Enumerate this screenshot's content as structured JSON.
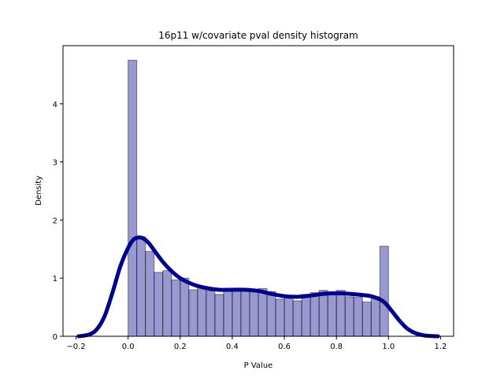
{
  "chart_data": {
    "type": "bar",
    "title": "16p11 w/covariate pval density histogram",
    "xlabel": "P Value",
    "ylabel": "Density",
    "xlim": [
      -0.25,
      1.25
    ],
    "ylim": [
      0,
      5.0
    ],
    "xticks": [
      -0.2,
      0.0,
      0.2,
      0.4,
      0.6,
      0.8,
      1.0,
      1.2
    ],
    "xtick_labels": [
      "−0.2",
      "0.0",
      "0.2",
      "0.4",
      "0.6",
      "0.8",
      "1.0",
      "1.2"
    ],
    "yticks": [
      0,
      1,
      2,
      3,
      4
    ],
    "ytick_labels": [
      "0",
      "1",
      "2",
      "3",
      "4"
    ],
    "bar_color": "#00008b",
    "bar_alpha": 0.4,
    "bar_edge_color": "#000000",
    "kde_color": "#00008b",
    "grid": false,
    "bins": {
      "left": [
        0.0,
        0.0333,
        0.0667,
        0.1,
        0.1333,
        0.1667,
        0.2,
        0.2333,
        0.2667,
        0.3,
        0.3333,
        0.3667,
        0.4,
        0.4333,
        0.4667,
        0.5,
        0.5333,
        0.5667,
        0.6,
        0.6333,
        0.6667,
        0.7,
        0.7333,
        0.7667,
        0.8,
        0.8333,
        0.8667,
        0.9,
        0.9333,
        0.9667
      ],
      "width": 0.0333,
      "density": [
        4.75,
        1.71,
        1.46,
        1.1,
        1.13,
        0.97,
        1.0,
        0.8,
        0.86,
        0.78,
        0.72,
        0.78,
        0.79,
        0.82,
        0.78,
        0.82,
        0.77,
        0.64,
        0.68,
        0.61,
        0.72,
        0.75,
        0.79,
        0.76,
        0.79,
        0.68,
        0.67,
        0.59,
        0.68,
        1.55
      ]
    },
    "kde": {
      "x": [
        -0.19,
        -0.15,
        -0.12,
        -0.09,
        -0.06,
        -0.03,
        0.0,
        0.02,
        0.04,
        0.06,
        0.08,
        0.1,
        0.13,
        0.16,
        0.2,
        0.25,
        0.3,
        0.35,
        0.4,
        0.45,
        0.5,
        0.55,
        0.6,
        0.65,
        0.7,
        0.75,
        0.8,
        0.85,
        0.9,
        0.94,
        0.98,
        1.01,
        1.04,
        1.07,
        1.1,
        1.13,
        1.16,
        1.19
      ],
      "y": [
        0.0,
        0.03,
        0.12,
        0.35,
        0.75,
        1.2,
        1.52,
        1.66,
        1.7,
        1.68,
        1.6,
        1.48,
        1.3,
        1.15,
        1.0,
        0.89,
        0.83,
        0.8,
        0.8,
        0.8,
        0.78,
        0.73,
        0.69,
        0.68,
        0.7,
        0.73,
        0.74,
        0.73,
        0.71,
        0.68,
        0.6,
        0.45,
        0.28,
        0.14,
        0.06,
        0.02,
        0.005,
        0.0
      ]
    }
  }
}
